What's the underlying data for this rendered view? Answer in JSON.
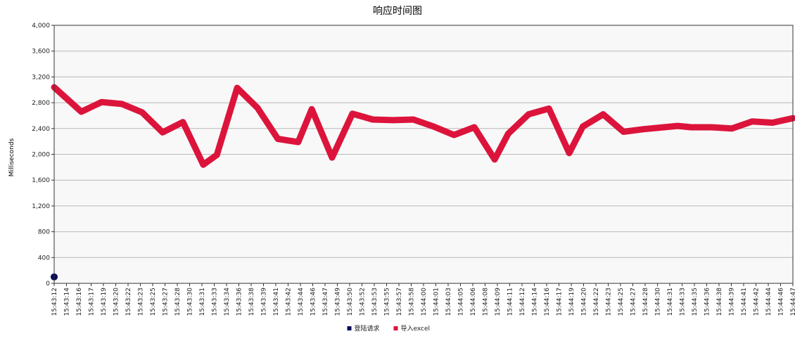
{
  "chart_data": {
    "type": "line",
    "title": "响应时间图",
    "xlabel": "",
    "ylabel": "Milliseconds",
    "ylim": [
      0,
      4000
    ],
    "yticks": [
      "0",
      "400",
      "800",
      "1,200",
      "1,600",
      "2,000",
      "2,400",
      "2,800",
      "3,200",
      "3,600",
      "4,000"
    ],
    "ytick_values": [
      0,
      400,
      800,
      1200,
      1600,
      2000,
      2400,
      2800,
      3200,
      3600,
      4000
    ],
    "grid": true,
    "legend_position": "bottom",
    "x": [
      "15:43:12",
      "15:43:14",
      "15:43:16",
      "15:43:17",
      "15:43:19",
      "15:43:20",
      "15:43:22",
      "15:43:23",
      "15:43:25",
      "15:43:27",
      "15:43:28",
      "15:43:30",
      "15:43:31",
      "15:43:33",
      "15:43:34",
      "15:43:36",
      "15:43:38",
      "15:43:39",
      "15:43:41",
      "15:43:42",
      "15:43:44",
      "15:43:46",
      "15:43:47",
      "15:43:49",
      "15:43:50",
      "15:43:52",
      "15:43:53",
      "15:43:55",
      "15:43:57",
      "15:43:58",
      "15:44:00",
      "15:44:01",
      "15:44:03",
      "15:44:05",
      "15:44:06",
      "15:44:08",
      "15:44:09",
      "15:44:11",
      "15:44:12",
      "15:44:14",
      "15:44:16",
      "15:44:17",
      "15:44:19",
      "15:44:20",
      "15:44:22",
      "15:44:23",
      "15:44:25",
      "15:44:27",
      "15:44:28",
      "15:44:30",
      "15:44:31",
      "15:44:33",
      "15:44:35",
      "15:44:36",
      "15:44:38",
      "15:44:39",
      "15:44:41",
      "15:44:42",
      "15:44:44",
      "15:44:46",
      "15:44:47"
    ],
    "series": [
      {
        "name": "登陆请求",
        "color": "#0a0a5a",
        "marker": "square",
        "points": [
          {
            "x": "15:43:12",
            "y": 100
          }
        ]
      },
      {
        "name": "导入excel",
        "color": "#dc143c",
        "marker": "line",
        "points": [
          {
            "x": "15:43:12",
            "y": 3040
          },
          {
            "x": "15:43:16",
            "y": 2660
          },
          {
            "x": "15:43:19",
            "y": 2810
          },
          {
            "x": "15:43:22",
            "y": 2780
          },
          {
            "x": "15:43:25",
            "y": 2650
          },
          {
            "x": "15:43:28",
            "y": 2340
          },
          {
            "x": "15:43:31",
            "y": 2500
          },
          {
            "x": "15:43:34",
            "y": 1840
          },
          {
            "x": "15:43:36",
            "y": 1990
          },
          {
            "x": "15:43:39",
            "y": 3030
          },
          {
            "x": "15:43:42",
            "y": 2720
          },
          {
            "x": "15:43:45",
            "y": 2240
          },
          {
            "x": "15:43:48",
            "y": 2190
          },
          {
            "x": "15:43:50",
            "y": 2700
          },
          {
            "x": "15:43:53",
            "y": 1950
          },
          {
            "x": "15:43:56",
            "y": 2630
          },
          {
            "x": "15:43:59",
            "y": 2540
          },
          {
            "x": "15:44:02",
            "y": 2530
          },
          {
            "x": "15:44:05",
            "y": 2540
          },
          {
            "x": "15:44:08",
            "y": 2430
          },
          {
            "x": "15:44:11",
            "y": 2300
          },
          {
            "x": "15:44:14",
            "y": 2420
          },
          {
            "x": "15:44:17",
            "y": 1920
          },
          {
            "x": "15:44:19",
            "y": 2320
          },
          {
            "x": "15:44:22",
            "y": 2620
          },
          {
            "x": "15:44:25",
            "y": 2710
          },
          {
            "x": "15:44:28",
            "y": 2020
          },
          {
            "x": "15:44:30",
            "y": 2430
          },
          {
            "x": "15:44:33",
            "y": 2620
          },
          {
            "x": "15:44:36",
            "y": 2350
          },
          {
            "x": "15:44:39",
            "y": 2390
          },
          {
            "x": "15:44:41",
            "y": 2410
          },
          {
            "x": "15:44:44",
            "y": 2440
          },
          {
            "x": "15:44:46",
            "y": 2420
          },
          {
            "x": "15:44:49",
            "y": 2420
          },
          {
            "x": "15:44:52",
            "y": 2400
          },
          {
            "x": "15:44:55",
            "y": 2510
          },
          {
            "x": "15:44:58",
            "y": 2490
          },
          {
            "x": "15:45:01",
            "y": 2560
          }
        ]
      }
    ]
  }
}
